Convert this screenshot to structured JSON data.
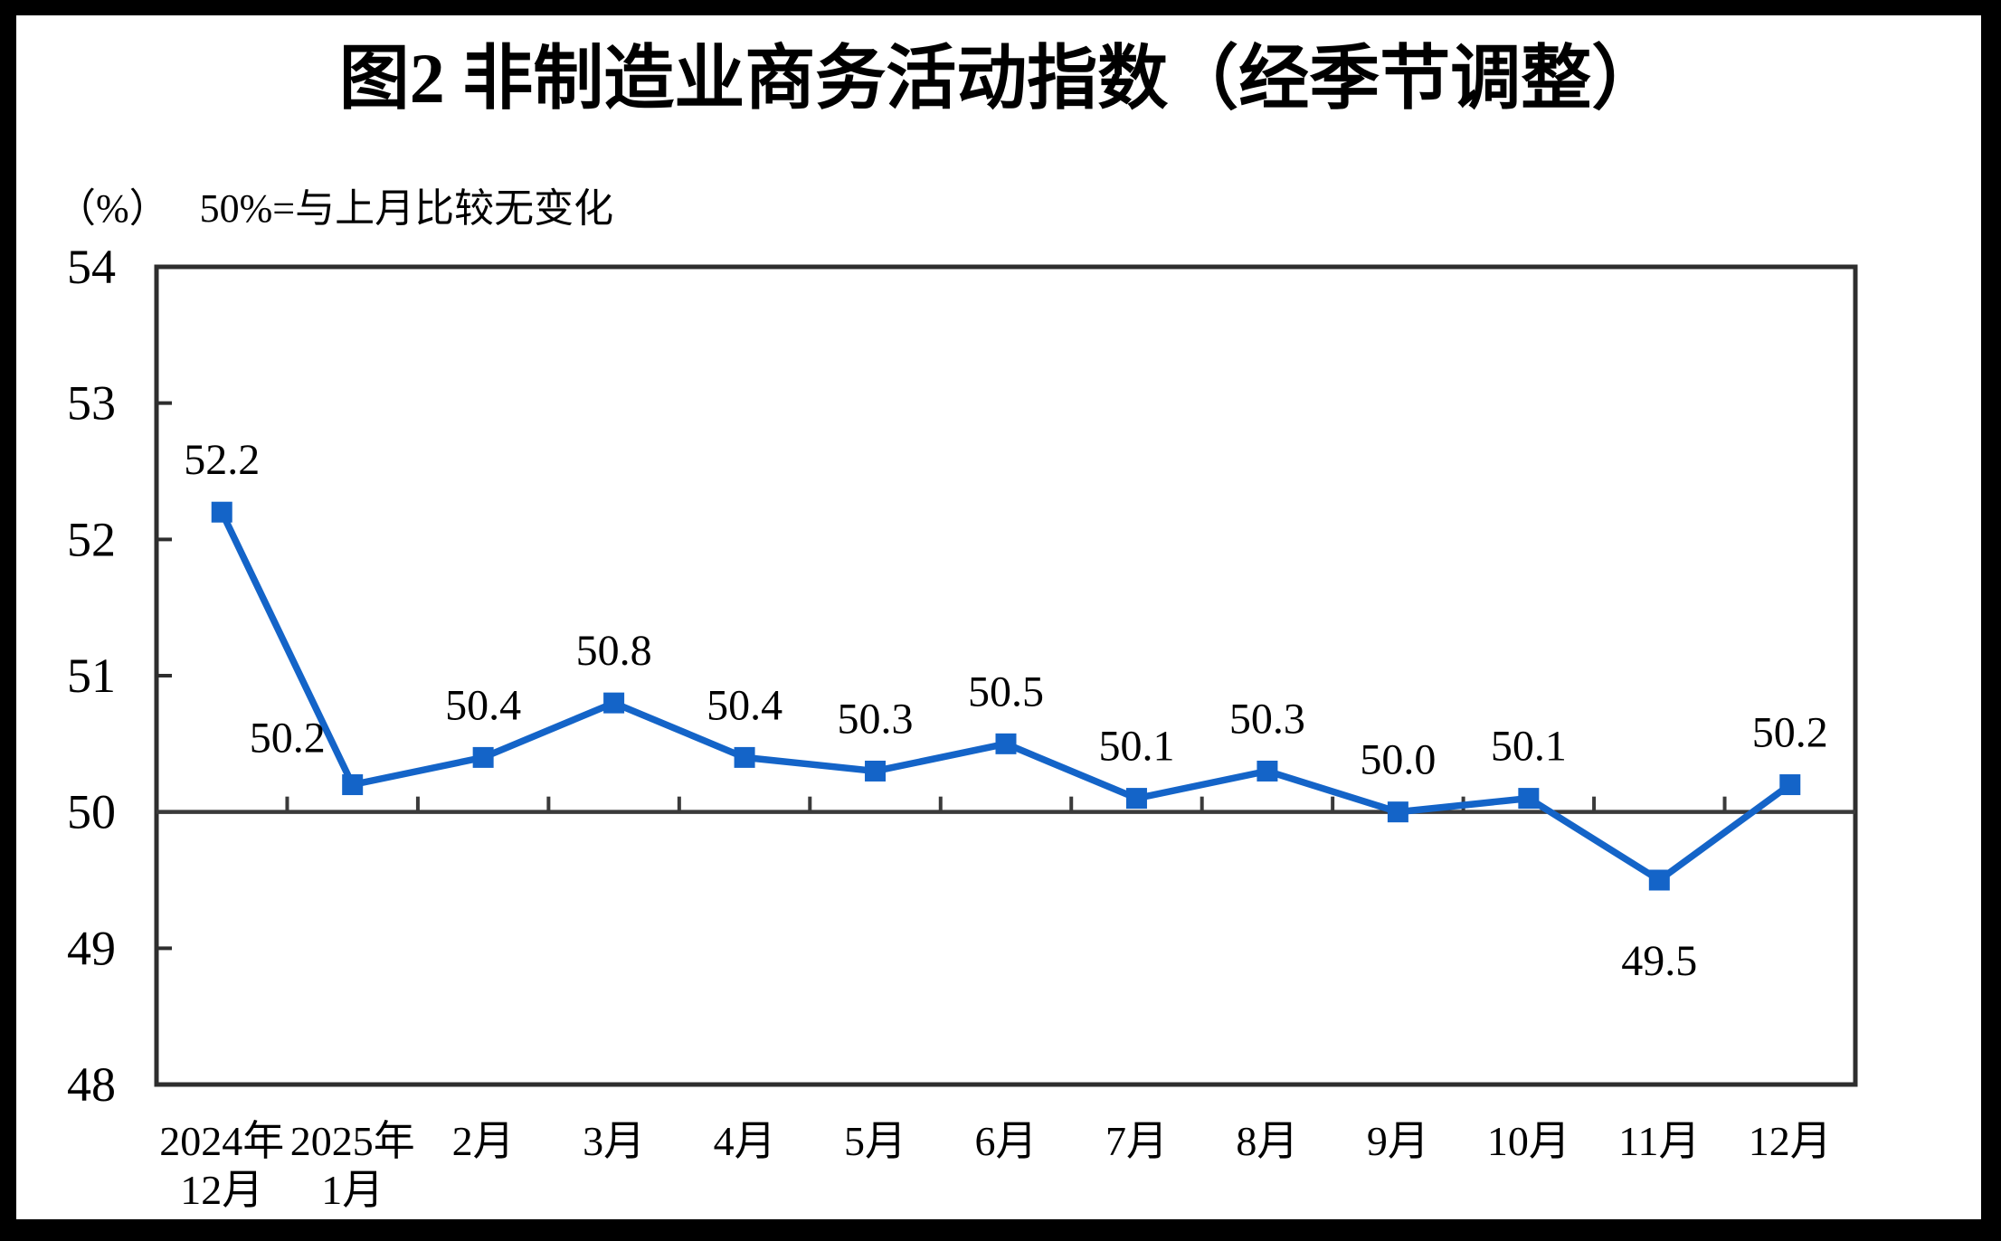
{
  "chart_data": {
    "type": "line",
    "title": "图2 非制造业商务活动指数（经季节调整）",
    "y_unit": "（%）",
    "reference_note": "50%=与上月比较无变化",
    "categories": [
      [
        "2024年",
        "12月"
      ],
      [
        "2025年",
        "1月"
      ],
      [
        "2月"
      ],
      [
        "3月"
      ],
      [
        "4月"
      ],
      [
        "5月"
      ],
      [
        "6月"
      ],
      [
        "7月"
      ],
      [
        "8月"
      ],
      [
        "9月"
      ],
      [
        "10月"
      ],
      [
        "11月"
      ],
      [
        "12月"
      ]
    ],
    "series": [
      {
        "name": "非制造业商务活动指数",
        "values": [
          52.2,
          50.2,
          50.4,
          50.8,
          50.4,
          50.3,
          50.5,
          50.1,
          50.3,
          50.0,
          50.1,
          49.5,
          50.2
        ],
        "point_labels": [
          "52.2",
          "50.2",
          "50.4",
          "50.8",
          "50.4",
          "50.3",
          "50.5",
          "50.1",
          "50.3",
          "50.0",
          "50.1",
          "49.5",
          "50.2"
        ],
        "label_positions": [
          "above",
          "left-above",
          "above",
          "above",
          "above",
          "above",
          "above",
          "above",
          "above",
          "above",
          "above",
          "below",
          "above"
        ]
      }
    ],
    "ylim": [
      48,
      54
    ],
    "y_ticks": [
      54,
      53,
      52,
      51,
      50,
      49,
      48
    ],
    "reference_value": 50,
    "grid": false,
    "legend": false,
    "colors": {
      "line": "#1464c8",
      "marker": "#1464c8",
      "axis": "#2e2e2e",
      "reference_line": "#3a3a3a",
      "text": "#000000"
    },
    "marker_shape": "square"
  }
}
